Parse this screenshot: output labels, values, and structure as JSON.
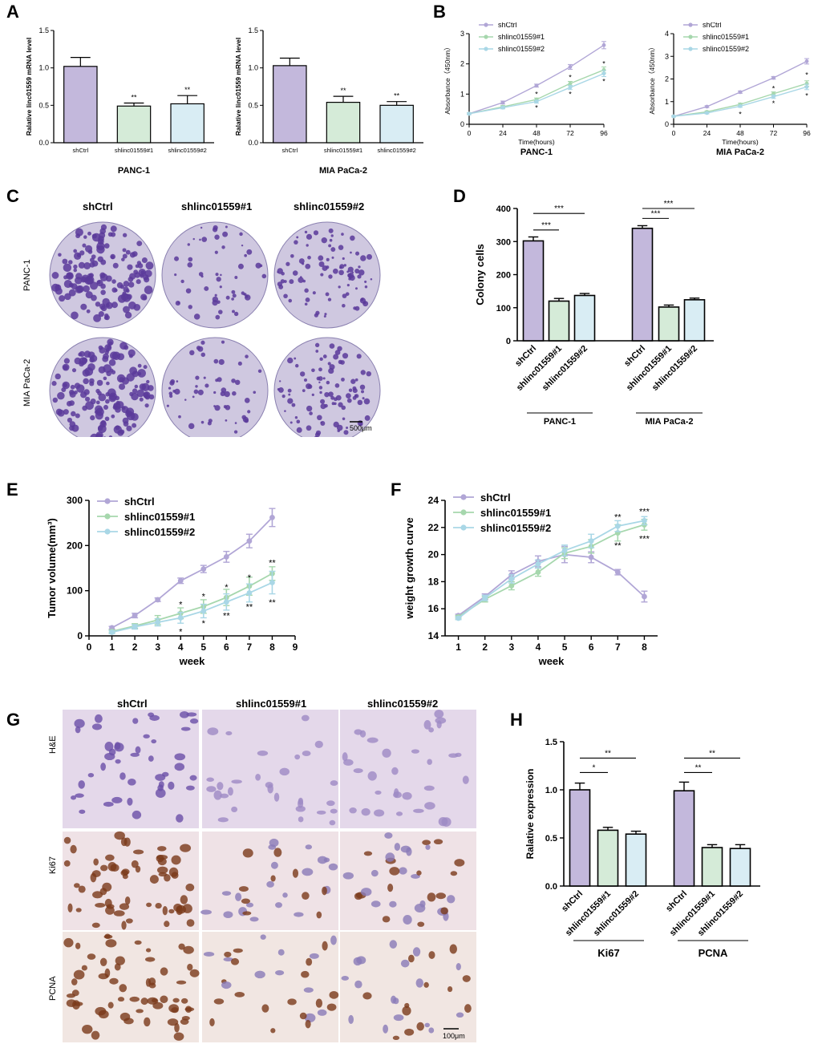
{
  "panels": {
    "A": "A",
    "B": "B",
    "C": "C",
    "D": "D",
    "E": "E",
    "F": "F",
    "G": "G",
    "H": "H"
  },
  "colors": {
    "shCtrl": "#c3b8dc",
    "shlinc1": "#d5ebd8",
    "shlinc2": "#d9edf4",
    "line_shCtrl": "#b1a6d6",
    "line_shlinc1": "#a6d7ad",
    "line_shlinc2": "#a9d7e6",
    "purple_stain": "#5a3a9a",
    "brown_stain": "#7a3a1a"
  },
  "panel_C": {
    "columns": [
      "shCtrl",
      "shlinc01559#1",
      "shlinc01559#2"
    ],
    "rows": [
      "PANC-1",
      "MIA PaCa-2"
    ],
    "scale_bar": "500μm"
  },
  "panel_G": {
    "columns": [
      "shCtrl",
      "shlinc01559#1",
      "shlinc01559#2"
    ],
    "rows": [
      "H&E",
      "Ki67",
      "PCNA"
    ],
    "scale_bar": "100μm"
  },
  "chart_data": [
    {
      "id": "A1",
      "type": "bar",
      "categories": [
        "shCtrl",
        "shlinc01559#1",
        "shlinc01559#2"
      ],
      "values": [
        1.02,
        0.49,
        0.52
      ],
      "errors": [
        0.12,
        0.04,
        0.11
      ],
      "significance": [
        "",
        "**",
        "**"
      ],
      "ylabel": "Ralative linc01559 mRNA level",
      "ylim": [
        0,
        1.5
      ],
      "yticks": [
        "0.0",
        "0.5",
        "1.0",
        "1.5"
      ],
      "group_label": "PANC-1"
    },
    {
      "id": "A2",
      "type": "bar",
      "categories": [
        "shCtrl",
        "shlinc01559#1",
        "shlinc01559#2"
      ],
      "values": [
        1.03,
        0.54,
        0.5
      ],
      "errors": [
        0.1,
        0.08,
        0.05
      ],
      "significance": [
        "",
        "**",
        "**"
      ],
      "ylabel": "Ralative linc01559 mRNA level",
      "ylim": [
        0,
        1.5
      ],
      "yticks": [
        "0.0",
        "0.5",
        "1.0",
        "1.5"
      ],
      "group_label": "MIA PaCa-2"
    },
    {
      "id": "B1",
      "type": "line",
      "x": [
        0,
        24,
        48,
        72,
        96
      ],
      "xticks": [
        "0",
        "24",
        "48",
        "72",
        "96"
      ],
      "xlabel": "Time(hours)",
      "ylabel": "Absorbance（450nm）",
      "ylim": [
        0,
        3
      ],
      "yticks": [
        "0",
        "1",
        "2",
        "3"
      ],
      "group_label": "PANC-1",
      "series": [
        {
          "name": "shCtrl",
          "values": [
            0.35,
            0.72,
            1.28,
            1.9,
            2.62
          ],
          "errors": [
            0.03,
            0.05,
            0.05,
            0.08,
            0.12
          ]
        },
        {
          "name": "shlinc01559#1",
          "values": [
            0.35,
            0.58,
            0.82,
            1.35,
            1.8
          ],
          "errors": [
            0.03,
            0.04,
            0.05,
            0.07,
            0.1
          ]
        },
        {
          "name": "shlinc01559#2",
          "values": [
            0.35,
            0.55,
            0.75,
            1.22,
            1.68
          ],
          "errors": [
            0.03,
            0.04,
            0.05,
            0.07,
            0.1
          ]
        }
      ],
      "annotations": [
        {
          "x": 48,
          "y": 1.0,
          "text": "*"
        },
        {
          "x": 48,
          "y": 0.55,
          "text": "*"
        },
        {
          "x": 72,
          "y": 1.55,
          "text": "*"
        },
        {
          "x": 72,
          "y": 1.0,
          "text": "*"
        },
        {
          "x": 96,
          "y": 2.0,
          "text": "*"
        },
        {
          "x": 96,
          "y": 1.42,
          "text": "*"
        }
      ]
    },
    {
      "id": "B2",
      "type": "line",
      "x": [
        0,
        24,
        48,
        72,
        96
      ],
      "xticks": [
        "0",
        "24",
        "48",
        "72",
        "96"
      ],
      "xlabel": "Time(hours)",
      "ylabel": "Absorbance（450nm）",
      "ylim": [
        0,
        4
      ],
      "yticks": [
        "0",
        "1",
        "2",
        "3",
        "4"
      ],
      "group_label": "MIA PaCa-2",
      "series": [
        {
          "name": "shCtrl",
          "values": [
            0.35,
            0.78,
            1.42,
            2.05,
            2.78
          ],
          "errors": [
            0.03,
            0.04,
            0.05,
            0.06,
            0.12
          ]
        },
        {
          "name": "shlinc01559#1",
          "values": [
            0.35,
            0.55,
            0.88,
            1.35,
            1.8
          ],
          "errors": [
            0.03,
            0.04,
            0.05,
            0.08,
            0.12
          ]
        },
        {
          "name": "shlinc01559#2",
          "values": [
            0.35,
            0.5,
            0.8,
            1.22,
            1.65
          ],
          "errors": [
            0.03,
            0.04,
            0.05,
            0.08,
            0.12
          ]
        }
      ],
      "annotations": [
        {
          "x": 48,
          "y": 0.45,
          "text": "*"
        },
        {
          "x": 72,
          "y": 1.58,
          "text": "*"
        },
        {
          "x": 72,
          "y": 0.92,
          "text": "*"
        },
        {
          "x": 96,
          "y": 2.18,
          "text": "*"
        },
        {
          "x": 96,
          "y": 1.25,
          "text": "*"
        }
      ]
    },
    {
      "id": "D",
      "type": "bar",
      "categories": [
        "shCtrl",
        "shlinc01559#1",
        "shlinc01559#2",
        "shCtrl",
        "shlinc01559#1",
        "shlinc01559#2"
      ],
      "values": [
        302,
        120,
        137,
        340,
        102,
        124
      ],
      "errors": [
        12,
        8,
        6,
        8,
        6,
        5
      ],
      "groups": [
        "PANC-1",
        "MIA PaCa-2"
      ],
      "ylabel": "Colony cells",
      "ylim": [
        0,
        400
      ],
      "yticks": [
        "0",
        "100",
        "200",
        "300",
        "400"
      ],
      "brackets": [
        {
          "from": 0,
          "to": 1,
          "y": 335,
          "text": "***"
        },
        {
          "from": 0,
          "to": 2,
          "y": 385,
          "text": "***"
        },
        {
          "from": 3,
          "to": 4,
          "y": 370,
          "text": "***"
        },
        {
          "from": 3,
          "to": 5,
          "y": 400,
          "text": "***"
        }
      ]
    },
    {
      "id": "E",
      "type": "line",
      "x": [
        1,
        2,
        3,
        4,
        5,
        6,
        7,
        8
      ],
      "xticks": [
        "0",
        "1",
        "2",
        "3",
        "4",
        "5",
        "6",
        "7",
        "8",
        "9"
      ],
      "xlim": [
        0,
        9
      ],
      "xlabel": "week",
      "ylabel": "Tumor volume(mm³)",
      "ylim": [
        0,
        300
      ],
      "yticks": [
        "0",
        "100",
        "200",
        "300"
      ],
      "series": [
        {
          "name": "shCtrl",
          "values": [
            18,
            45,
            80,
            122,
            148,
            175,
            210,
            262
          ],
          "errors": [
            3,
            5,
            4,
            6,
            8,
            12,
            15,
            20
          ]
        },
        {
          "name": "shlinc01559#1",
          "values": [
            10,
            22,
            35,
            50,
            65,
            85,
            110,
            138
          ],
          "errors": [
            3,
            5,
            10,
            12,
            15,
            18,
            20,
            15
          ]
        },
        {
          "name": "shlinc01559#2",
          "values": [
            8,
            20,
            30,
            40,
            55,
            75,
            95,
            118
          ],
          "errors": [
            3,
            5,
            8,
            12,
            15,
            18,
            20,
            25
          ]
        }
      ],
      "annotations": [
        {
          "x": 4,
          "y": 70,
          "text": "*"
        },
        {
          "x": 4,
          "y": 10,
          "text": "*"
        },
        {
          "x": 5,
          "y": 88,
          "text": "*"
        },
        {
          "x": 5,
          "y": 28,
          "text": "*"
        },
        {
          "x": 6,
          "y": 108,
          "text": "*"
        },
        {
          "x": 6,
          "y": 45,
          "text": "**"
        },
        {
          "x": 7,
          "y": 130,
          "text": "*"
        },
        {
          "x": 7,
          "y": 65,
          "text": "**"
        },
        {
          "x": 8,
          "y": 162,
          "text": "**"
        },
        {
          "x": 8,
          "y": 75,
          "text": "**"
        }
      ]
    },
    {
      "id": "F",
      "type": "line",
      "x": [
        1,
        2,
        3,
        4,
        5,
        6,
        7,
        8
      ],
      "xticks": [
        "1",
        "2",
        "3",
        "4",
        "5",
        "6",
        "7",
        "8"
      ],
      "xlabel": "week",
      "ylabel": "weight growth curve",
      "ylim": [
        14,
        24
      ],
      "yticks": [
        "14",
        "16",
        "18",
        "20",
        "22",
        "24"
      ],
      "series": [
        {
          "name": "shCtrl",
          "values": [
            15.5,
            16.9,
            18.5,
            19.5,
            20.0,
            19.8,
            18.7,
            16.9
          ],
          "errors": [
            0.1,
            0.2,
            0.3,
            0.4,
            0.6,
            0.4,
            0.2,
            0.4
          ]
        },
        {
          "name": "shlinc01559#1",
          "values": [
            15.4,
            16.7,
            17.7,
            18.7,
            20.1,
            20.6,
            21.6,
            22.2
          ],
          "errors": [
            0.1,
            0.2,
            0.3,
            0.3,
            0.4,
            0.5,
            0.6,
            0.4
          ]
        },
        {
          "name": "shlinc01559#2",
          "values": [
            15.3,
            16.8,
            18.2,
            19.3,
            20.3,
            21.0,
            22.1,
            22.5
          ],
          "errors": [
            0.1,
            0.2,
            0.3,
            0.3,
            0.4,
            0.5,
            0.4,
            0.3
          ]
        }
      ],
      "annotations": [
        {
          "x": 7,
          "y": 22.8,
          "text": "**"
        },
        {
          "x": 7,
          "y": 20.7,
          "text": "**"
        },
        {
          "x": 8,
          "y": 23.2,
          "text": "***"
        },
        {
          "x": 8,
          "y": 21.2,
          "text": "***"
        }
      ]
    },
    {
      "id": "H",
      "type": "bar",
      "categories": [
        "shCtrl",
        "shlinc01559#1",
        "shlinc01559#2",
        "shCtrl",
        "shlinc01559#1",
        "shlinc01559#2"
      ],
      "values": [
        1.0,
        0.58,
        0.54,
        0.99,
        0.4,
        0.39
      ],
      "errors": [
        0.07,
        0.03,
        0.03,
        0.09,
        0.03,
        0.04
      ],
      "groups": [
        "Ki67",
        "PCNA"
      ],
      "ylabel": "Ralative expression",
      "ylim": [
        0,
        1.5
      ],
      "yticks": [
        "0.0",
        "0.5",
        "1.0",
        "1.5"
      ],
      "brackets": [
        {
          "from": 0,
          "to": 1,
          "y": 1.18,
          "text": "*"
        },
        {
          "from": 0,
          "to": 2,
          "y": 1.33,
          "text": "**"
        },
        {
          "from": 3,
          "to": 4,
          "y": 1.18,
          "text": "**"
        },
        {
          "from": 3,
          "to": 5,
          "y": 1.33,
          "text": "**"
        }
      ]
    }
  ]
}
